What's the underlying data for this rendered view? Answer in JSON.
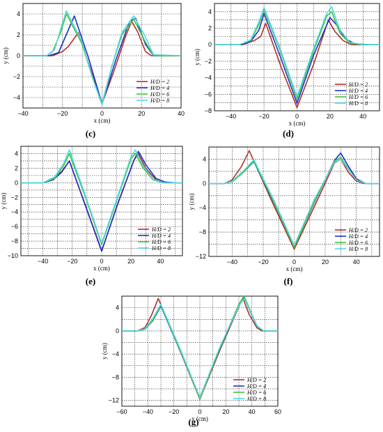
{
  "chart_data": [
    {
      "panel_label": "(c)",
      "type": "line",
      "xlabel": "x (cm)",
      "ylabel": "y (cm)",
      "xlim": [
        -40,
        40
      ],
      "ylim": [
        -5,
        5
      ],
      "xticks": [
        -40,
        -20,
        0,
        20,
        40
      ],
      "yticks": [
        -4,
        -2,
        0,
        2,
        4
      ],
      "grid": true,
      "legend_position": "bottom-right",
      "series": [
        {
          "name": "H/D = 2",
          "color": "#b0302a",
          "x": [
            -40,
            -25,
            -20,
            -17,
            -12,
            -6,
            0,
            6,
            12,
            15,
            18,
            22,
            25,
            40
          ],
          "y": [
            0,
            0,
            0.4,
            0.9,
            2.2,
            -1.2,
            -4.6,
            -1.5,
            1.9,
            3.3,
            2.3,
            0.4,
            0,
            0
          ]
        },
        {
          "name": "H/D = 4",
          "color": "#1f2fc8",
          "x": [
            -40,
            -27,
            -22,
            -17,
            -14,
            -7,
            0,
            7,
            14,
            17,
            22,
            26,
            40
          ],
          "y": [
            0,
            0,
            0.3,
            2.5,
            3.8,
            -0.1,
            -4.6,
            -0.4,
            3.3,
            3.6,
            1.1,
            0,
            0
          ]
        },
        {
          "name": "H/D = 6",
          "color": "#3ec43a",
          "x": [
            -40,
            -28,
            -25,
            -21,
            -18,
            -10,
            -5,
            0,
            5,
            10,
            16,
            22,
            26,
            40
          ],
          "y": [
            0,
            0,
            0.4,
            2.2,
            4.0,
            1.1,
            -2.0,
            -4.6,
            -1.0,
            2.0,
            3.5,
            1.3,
            0,
            0
          ]
        },
        {
          "name": "H/D = 8",
          "color": "#4fd8e4",
          "x": [
            -40,
            -28,
            -24,
            -21,
            -18,
            -10,
            -5,
            0,
            5,
            10,
            16,
            22,
            26,
            40
          ],
          "y": [
            0,
            0,
            0.6,
            2.5,
            4.3,
            1.3,
            -2.0,
            -4.7,
            -1.0,
            2.2,
            3.8,
            1.8,
            0.1,
            0
          ]
        }
      ]
    },
    {
      "panel_label": "(d)",
      "type": "line",
      "xlabel": "x (cm)",
      "ylabel": "y (cm)",
      "xlim": [
        -50,
        50
      ],
      "ylim": [
        -8,
        5
      ],
      "xticks": [
        -40,
        -20,
        0,
        20,
        40
      ],
      "yticks": [
        -8,
        -6,
        -4,
        -2,
        0,
        2,
        4
      ],
      "grid": true,
      "legend_position": "bottom-right",
      "series": [
        {
          "name": "H/D = 2",
          "color": "#b0302a",
          "x": [
            -50,
            -33,
            -26,
            -22,
            -19,
            -10,
            0,
            10,
            19,
            23,
            28,
            33,
            50
          ],
          "y": [
            0,
            0,
            0.5,
            1.0,
            2.6,
            -2.5,
            -7.6,
            -2.4,
            3.0,
            1.6,
            0.5,
            0,
            0
          ]
        },
        {
          "name": "H/D = 4",
          "color": "#1f2fc8",
          "x": [
            -50,
            -34,
            -28,
            -23,
            -20,
            -10,
            0,
            10,
            20,
            24,
            29,
            35,
            45,
            50
          ],
          "y": [
            0,
            0,
            0.4,
            1.8,
            3.8,
            -1.5,
            -7.1,
            -1.3,
            3.3,
            2.4,
            0.8,
            0.1,
            0,
            0
          ]
        },
        {
          "name": "H/D = 6",
          "color": "#3ec43a",
          "x": [
            -50,
            -35,
            -28,
            -23,
            -20,
            -10,
            0,
            10,
            18,
            21,
            26,
            32,
            40,
            50
          ],
          "y": [
            0,
            0,
            0.5,
            2.5,
            4.3,
            -0.8,
            -6.6,
            -0.8,
            3.5,
            4.0,
            1.4,
            0.2,
            0,
            0
          ]
        },
        {
          "name": "H/D = 8",
          "color": "#4fd8e4",
          "x": [
            -50,
            -35,
            -28,
            -23,
            -20,
            -10,
            0,
            10,
            18,
            21,
            26,
            32,
            40,
            50
          ],
          "y": [
            0,
            0,
            0.6,
            2.8,
            4.5,
            -0.6,
            -6.3,
            -0.5,
            3.8,
            4.6,
            1.8,
            0.3,
            0,
            0
          ]
        }
      ]
    },
    {
      "panel_label": "(e)",
      "type": "line",
      "xlabel": "x (cm)",
      "ylabel": "y (cm)",
      "xlim": [
        -55,
        55
      ],
      "ylim": [
        -10,
        5
      ],
      "xticks": [
        -40,
        -20,
        0,
        20,
        40
      ],
      "yticks": [
        -10,
        -8,
        -6,
        -4,
        -2,
        0,
        2,
        4
      ],
      "grid": true,
      "legend_position": "bottom-right",
      "series": [
        {
          "name": "H/D = 2",
          "color": "#b0302a",
          "x": [
            -55,
            -40,
            -33,
            -27,
            -22,
            -11,
            0,
            11,
            22,
            25,
            30,
            37,
            42,
            55
          ],
          "y": [
            0,
            0,
            0.5,
            1.6,
            3.0,
            -3.1,
            -9.3,
            -2.9,
            3.1,
            4.0,
            2.0,
            0.4,
            0,
            0
          ]
        },
        {
          "name": "H/D = 4",
          "color": "#1f2fc8",
          "x": [
            -55,
            -40,
            -33,
            -27,
            -22,
            -11,
            0,
            11,
            22,
            25,
            30,
            37,
            43,
            50,
            55
          ],
          "y": [
            0,
            0,
            0.4,
            1.5,
            3.0,
            -3.2,
            -9.4,
            -2.8,
            3.1,
            4.3,
            2.5,
            0.6,
            0.1,
            0,
            0
          ]
        },
        {
          "name": "H/D = 6",
          "color": "#3ec43a",
          "x": [
            -55,
            -40,
            -32,
            -26,
            -22,
            -11,
            0,
            11,
            20,
            23,
            28,
            35,
            42,
            55
          ],
          "y": [
            0,
            0,
            0.6,
            2.3,
            4.0,
            -2.0,
            -8.5,
            -2.0,
            3.3,
            4.0,
            2.1,
            0.4,
            0,
            0
          ]
        },
        {
          "name": "H/D = 8",
          "color": "#4fd8e4",
          "x": [
            -55,
            -40,
            -32,
            -26,
            -22,
            -11,
            0,
            11,
            20,
            23,
            28,
            35,
            42,
            55
          ],
          "y": [
            0,
            0,
            0.8,
            2.6,
            4.5,
            -1.8,
            -8.3,
            -1.8,
            3.6,
            4.5,
            2.4,
            0.5,
            0,
            0
          ]
        }
      ]
    },
    {
      "panel_label": "(f)",
      "type": "line",
      "xlabel": "x (cm)",
      "ylabel": "y (cm)",
      "xlim": [
        -55,
        55
      ],
      "ylim": [
        -12,
        6
      ],
      "xticks": [
        -40,
        -20,
        0,
        20,
        40
      ],
      "yticks": [
        -12,
        -8,
        -4,
        0,
        4
      ],
      "grid": true,
      "legend_position": "bottom-right",
      "series": [
        {
          "name": "H/D = 2",
          "color": "#b0302a",
          "x": [
            -55,
            -45,
            -40,
            -34,
            -29,
            -15,
            0,
            15,
            26,
            30,
            35,
            40,
            45,
            55
          ],
          "y": [
            0,
            0,
            0.6,
            2.8,
            5.4,
            -2.6,
            -10.8,
            -2.7,
            3.4,
            4.0,
            1.8,
            0.4,
            0,
            0
          ]
        },
        {
          "name": "H/D = 4",
          "color": "#1f2fc8",
          "x": [
            -55,
            -45,
            -40,
            -33,
            -26,
            -13,
            0,
            13,
            26,
            30,
            35,
            40,
            46,
            55
          ],
          "y": [
            0,
            0,
            0.3,
            1.8,
            3.6,
            -3.2,
            -10.4,
            -3.1,
            3.8,
            5.0,
            2.8,
            0.8,
            0,
            0
          ]
        },
        {
          "name": "H/D = 6",
          "color": "#3ec43a",
          "x": [
            -55,
            -45,
            -40,
            -33,
            -26,
            -13,
            0,
            13,
            26,
            30,
            35,
            40,
            46,
            55
          ],
          "y": [
            0,
            0,
            0.3,
            1.8,
            3.7,
            -3.1,
            -10.5,
            -3.0,
            3.7,
            4.3,
            2.4,
            0.6,
            0,
            0
          ]
        },
        {
          "name": "H/D = 8",
          "color": "#4fd8e4",
          "x": [
            -55,
            -45,
            -40,
            -33,
            -26,
            -13,
            0,
            13,
            26,
            30,
            35,
            40,
            46,
            55
          ],
          "y": [
            0,
            0,
            0.4,
            2.0,
            3.9,
            -2.8,
            -10.2,
            -2.6,
            3.5,
            4.0,
            2.3,
            0.6,
            0,
            0
          ]
        }
      ]
    },
    {
      "panel_label": "(g)",
      "type": "line",
      "xlabel": "x (cm)",
      "ylabel": "y (cm)",
      "xlim": [
        -60,
        60
      ],
      "ylim": [
        -13,
        6
      ],
      "xticks": [
        -60,
        -40,
        -20,
        0,
        20,
        40,
        60
      ],
      "yticks": [
        -12,
        -8,
        -4,
        0,
        4
      ],
      "grid": true,
      "legend_position": "bottom-right",
      "series": [
        {
          "name": "H/D = 2",
          "color": "#b0302a",
          "x": [
            -60,
            -48,
            -42,
            -37,
            -32,
            -16,
            0,
            16,
            30,
            33,
            38,
            44,
            48,
            60
          ],
          "y": [
            0,
            0,
            0.6,
            2.8,
            5.6,
            -3.0,
            -11.8,
            -3.0,
            4.2,
            5.7,
            2.8,
            0.5,
            0,
            0
          ]
        },
        {
          "name": "H/D = 4",
          "color": "#1f2fc8",
          "x": [
            -60,
            -48,
            -42,
            -36,
            -30,
            -15,
            0,
            15,
            30,
            34,
            39,
            44,
            49,
            60
          ],
          "y": [
            0,
            0,
            0.3,
            1.8,
            4.3,
            -3.5,
            -11.5,
            -3.3,
            4.5,
            5.8,
            3.2,
            0.8,
            0,
            0
          ]
        },
        {
          "name": "H/D = 6",
          "color": "#3ec43a",
          "x": [
            -60,
            -48,
            -42,
            -36,
            -30,
            -15,
            0,
            15,
            30,
            34,
            39,
            44,
            49,
            60
          ],
          "y": [
            0,
            0,
            0.3,
            1.9,
            4.5,
            -3.4,
            -11.7,
            -3.2,
            4.6,
            6.0,
            3.4,
            0.8,
            0,
            0
          ]
        },
        {
          "name": "H/D = 8",
          "color": "#4fd8e4",
          "x": [
            -60,
            -48,
            -42,
            -36,
            -30,
            -15,
            0,
            15,
            30,
            34,
            39,
            44,
            49,
            60
          ],
          "y": [
            0,
            0,
            0.4,
            2.2,
            4.6,
            -3.2,
            -11.5,
            -3.0,
            4.3,
            5.6,
            3.3,
            0.9,
            0,
            0
          ]
        }
      ]
    }
  ]
}
